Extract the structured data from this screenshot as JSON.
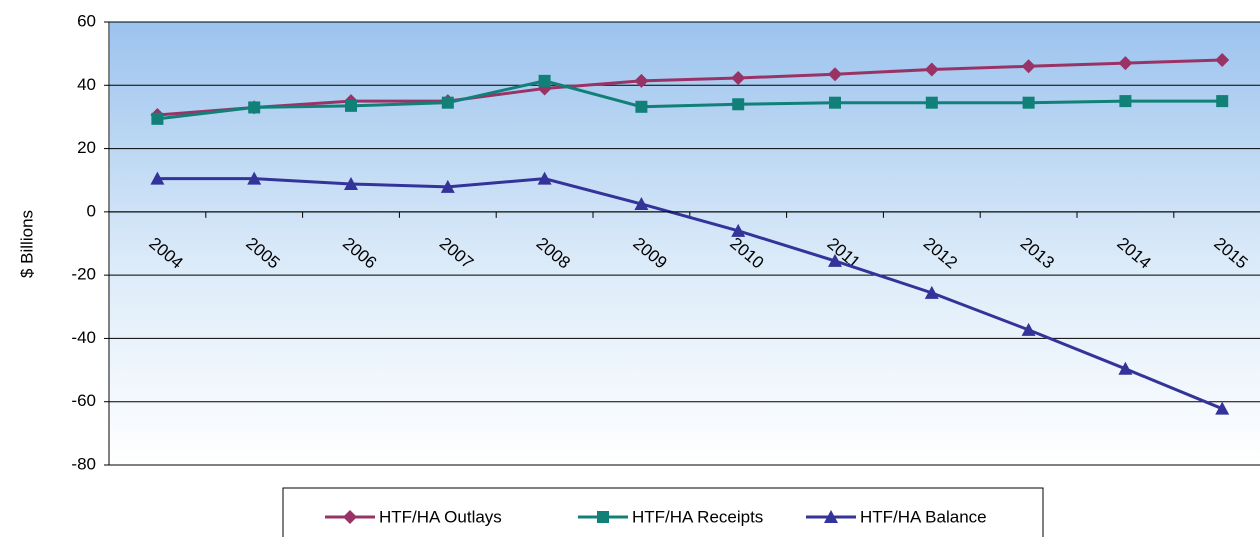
{
  "chart_data": {
    "type": "line",
    "y_label": "$ Billions",
    "categories": [
      "2004",
      "2005",
      "2006",
      "2007",
      "2008",
      "2009",
      "2010",
      "2011",
      "2012",
      "2013",
      "2014",
      "2015"
    ],
    "series": [
      {
        "name": "HTF/HA Outlays",
        "color": "#993366",
        "marker": "diamond",
        "values": [
          30.6,
          33,
          35,
          35,
          39,
          41.4,
          42.3,
          43.5,
          45,
          46,
          47,
          48
        ]
      },
      {
        "name": "HTF/HA Receipts",
        "color": "#108078",
        "marker": "square",
        "values": [
          29.4,
          33,
          33.5,
          34.5,
          41.4,
          33.2,
          34,
          34.5,
          34.5,
          34.5,
          35,
          35
        ]
      },
      {
        "name": "HTF/HA Balance",
        "color": "#333399",
        "marker": "triangle",
        "values": [
          10.5,
          10.5,
          8.8,
          7.9,
          10.5,
          2.5,
          -6,
          -15.5,
          -25.6,
          -37.3,
          -49.6,
          -62.2
        ]
      }
    ],
    "ylim": [
      -80,
      60
    ],
    "yticks": [
      -80,
      -60,
      -40,
      -20,
      0,
      20,
      40,
      60
    ],
    "grid": true,
    "legend": "bottom"
  }
}
